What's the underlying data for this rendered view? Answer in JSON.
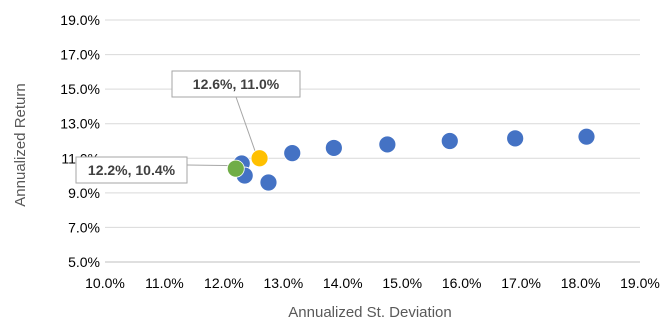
{
  "chart_data": {
    "type": "scatter",
    "title": "",
    "xlabel": "Annualized St. Deviation",
    "ylabel": "Annualized Return",
    "xlim": [
      10.0,
      19.0
    ],
    "ylim": [
      5.0,
      19.0
    ],
    "x_ticks": [
      "10.0%",
      "11.0%",
      "12.0%",
      "13.0%",
      "14.0%",
      "15.0%",
      "16.0%",
      "17.0%",
      "18.0%",
      "19.0%"
    ],
    "y_ticks": [
      "5.0%",
      "7.0%",
      "9.0%",
      "11.0%",
      "13.0%",
      "15.0%",
      "17.0%",
      "19.0%"
    ],
    "grid": "horizontal",
    "series": [
      {
        "color": "#4472c4",
        "points": [
          {
            "x": 12.3,
            "y": 10.7
          },
          {
            "x": 12.35,
            "y": 10.0
          },
          {
            "x": 12.75,
            "y": 9.6
          },
          {
            "x": 13.15,
            "y": 11.3
          },
          {
            "x": 13.85,
            "y": 11.6
          },
          {
            "x": 14.75,
            "y": 11.8
          },
          {
            "x": 15.8,
            "y": 12.0
          },
          {
            "x": 16.9,
            "y": 12.15
          },
          {
            "x": 18.1,
            "y": 12.25
          }
        ]
      },
      {
        "color": "#ffc000",
        "points": [
          {
            "x": 12.6,
            "y": 11.0
          }
        ],
        "callout": "12.6%, 11.0%"
      },
      {
        "color": "#70ad47",
        "points": [
          {
            "x": 12.2,
            "y": 10.4
          }
        ],
        "callout": "12.2%, 10.4%"
      }
    ]
  }
}
